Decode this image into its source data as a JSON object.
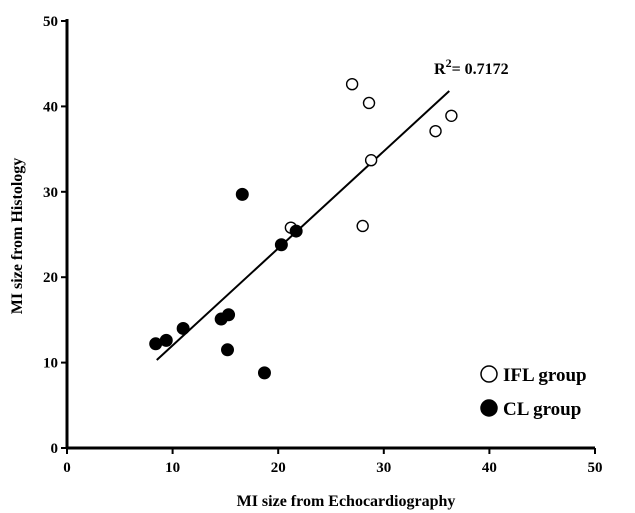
{
  "chart_data": {
    "type": "scatter",
    "title": "",
    "xlabel": "MI size from Echocardiography",
    "ylabel": "MI size from Histology",
    "xlim": [
      0,
      50
    ],
    "ylim": [
      0,
      50
    ],
    "x_ticks": [
      "0",
      "10",
      "20",
      "30",
      "40",
      "50"
    ],
    "y_ticks": [
      "0",
      "10",
      "20",
      "30",
      "40",
      "50"
    ],
    "grid": false,
    "legend_position": "bottom-right",
    "annotation": {
      "prefix": "R",
      "sup": "2",
      "suffix": "= 0.7172"
    },
    "trendline": {
      "x": [
        8.5,
        36.2
      ],
      "y": [
        10.3,
        41.8
      ]
    },
    "series": [
      {
        "name": "IFL group",
        "marker": "open-circle",
        "color": "#000000",
        "points": [
          {
            "x": 21.2,
            "y": 25.8
          },
          {
            "x": 27.0,
            "y": 42.6
          },
          {
            "x": 28.0,
            "y": 26.0
          },
          {
            "x": 28.6,
            "y": 40.4
          },
          {
            "x": 28.8,
            "y": 33.7
          },
          {
            "x": 34.9,
            "y": 37.1
          },
          {
            "x": 36.4,
            "y": 38.9
          }
        ]
      },
      {
        "name": "CL group",
        "marker": "filled-circle",
        "color": "#000000",
        "points": [
          {
            "x": 8.4,
            "y": 12.2
          },
          {
            "x": 9.4,
            "y": 12.6
          },
          {
            "x": 11.0,
            "y": 14.0
          },
          {
            "x": 14.6,
            "y": 15.1
          },
          {
            "x": 15.2,
            "y": 11.5
          },
          {
            "x": 15.3,
            "y": 15.6
          },
          {
            "x": 16.6,
            "y": 29.7
          },
          {
            "x": 18.7,
            "y": 8.8
          },
          {
            "x": 20.3,
            "y": 23.8
          },
          {
            "x": 21.7,
            "y": 25.4
          }
        ]
      }
    ]
  }
}
